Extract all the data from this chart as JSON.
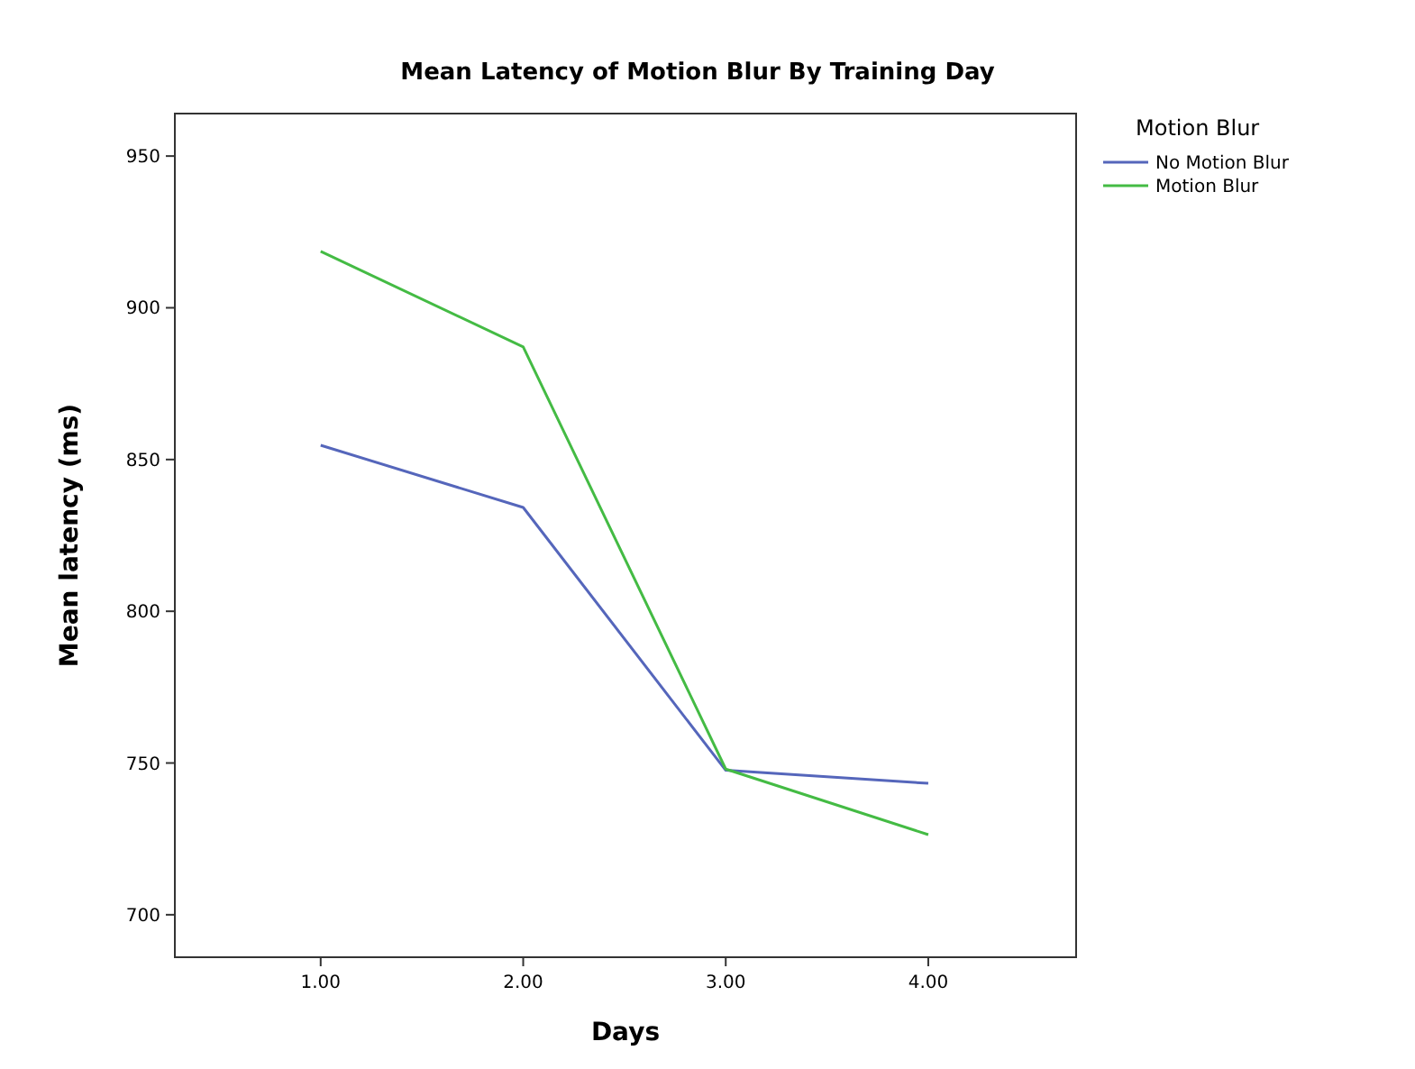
{
  "chart_data": {
    "type": "line",
    "title": "Mean Latency of Motion Blur By Training Day",
    "xlabel": "Days",
    "ylabel": "Mean latency (ms)",
    "legend_title": "Motion Blur",
    "legend": "top right",
    "x": [
      1,
      2,
      3,
      4
    ],
    "xlim": [
      0.28,
      4.73
    ],
    "xticks": [
      {
        "value": 1,
        "label": "1.00"
      },
      {
        "value": 2,
        "label": "2.00"
      },
      {
        "value": 3,
        "label": "3.00"
      },
      {
        "value": 4,
        "label": "4.00"
      }
    ],
    "ylim": [
      686,
      964
    ],
    "yticks": [
      700,
      750,
      800,
      850,
      900,
      950
    ],
    "grid": false,
    "marker": "none",
    "line_style": "solid",
    "series": [
      {
        "name": "No Motion Blur",
        "color": "#5566bb",
        "values": [
          854.7,
          834.2,
          747.6,
          743.3
        ]
      },
      {
        "name": "Motion Blur",
        "color": "#44bb44",
        "values": [
          918.6,
          887.1,
          748,
          726.4
        ]
      }
    ]
  }
}
